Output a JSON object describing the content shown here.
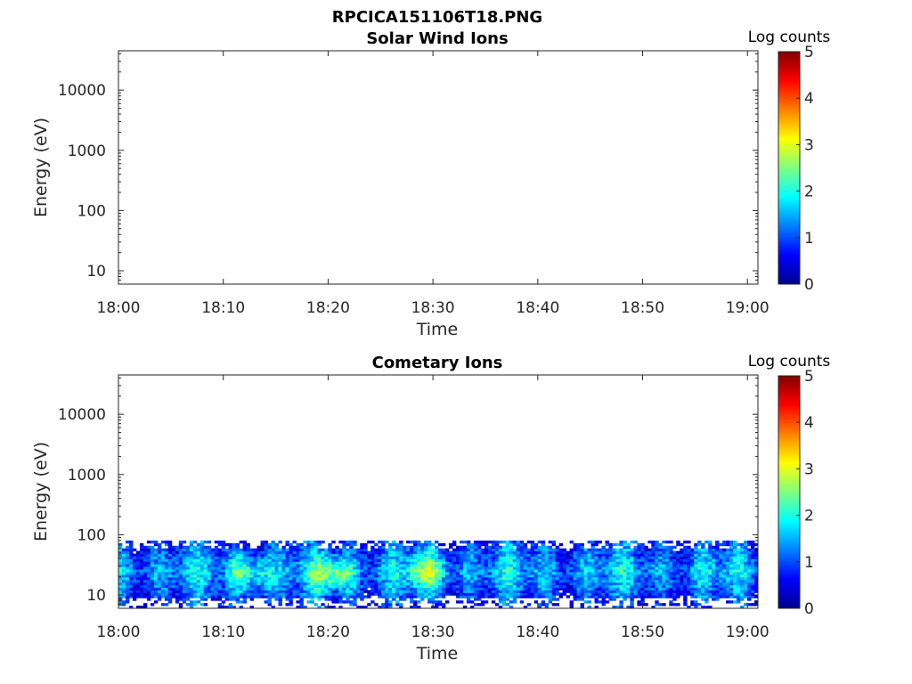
{
  "figure": {
    "file_title": "RPCICA151106T18.PNG"
  },
  "chart_data": [
    {
      "type": "heatmap",
      "title": "Solar Wind Ions",
      "xlabel": "Time",
      "ylabel": "Energy (eV)",
      "x_ticks": [
        "18:00",
        "18:10",
        "18:20",
        "18:30",
        "18:40",
        "18:50",
        "19:00"
      ],
      "y_ticks": [
        "10",
        "100",
        "1000",
        "10000"
      ],
      "y_scale": "log",
      "ylim": [
        6,
        45000
      ],
      "xlim": [
        "18:00",
        "19:01"
      ],
      "colorbar_label": "Log counts",
      "colorbar_range": [
        0,
        5
      ],
      "colorbar_ticks": [
        "0",
        "1",
        "2",
        "3",
        "4",
        "5"
      ],
      "colormap": "jet",
      "data": "empty"
    },
    {
      "type": "heatmap",
      "title": "Cometary Ions",
      "xlabel": "Time",
      "ylabel": "Energy (eV)",
      "x_ticks": [
        "18:00",
        "18:10",
        "18:20",
        "18:30",
        "18:40",
        "18:50",
        "19:00"
      ],
      "y_ticks": [
        "10",
        "100",
        "1000",
        "10000"
      ],
      "y_scale": "log",
      "ylim": [
        6,
        45000
      ],
      "xlim": [
        "18:00",
        "19:01"
      ],
      "colorbar_label": "Log counts",
      "colorbar_range": [
        0,
        5
      ],
      "colorbar_ticks": [
        "0",
        "1",
        "2",
        "3",
        "4",
        "5"
      ],
      "colormap": "jet",
      "energy_range_eV": [
        6,
        80
      ],
      "peak_log_counts": 3.2,
      "high_intensity_intervals": [
        {
          "start": "18:10",
          "end": "18:15",
          "energy_eV": [
            15,
            35
          ],
          "log_counts": 2.9
        },
        {
          "start": "18:18",
          "end": "18:23",
          "energy_eV": [
            15,
            35
          ],
          "log_counts": 3.2
        },
        {
          "start": "18:27",
          "end": "18:32",
          "energy_eV": [
            15,
            40
          ],
          "log_counts": 3.0
        }
      ]
    }
  ]
}
